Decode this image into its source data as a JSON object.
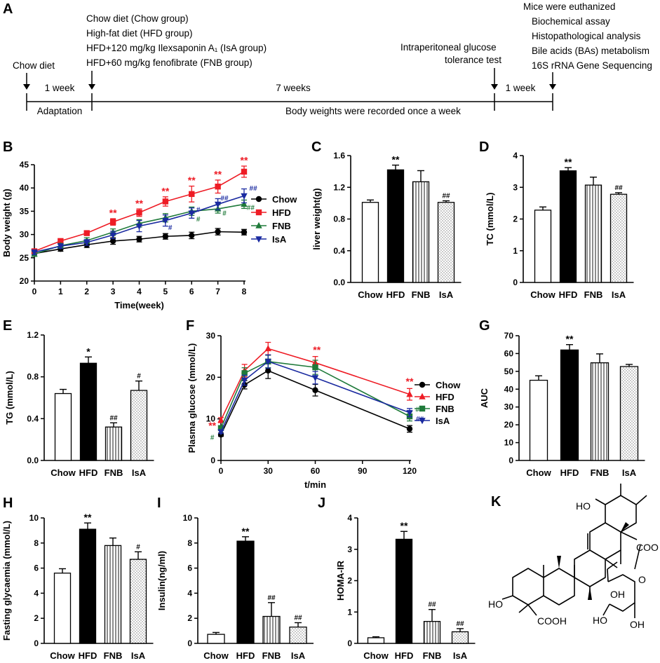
{
  "colors": {
    "chow": "#000000",
    "hfd": "#ee1c25",
    "fnb": "#1f7a3a",
    "isa": "#1a2aa0"
  },
  "timeline": {
    "panel_label": "A",
    "start_label": "Chow diet",
    "groups": [
      "Chow diet (Chow group)",
      "High-fat diet (HFD group)",
      "HFD+120 mg/kg Ilexsaponin A₁ (IsA group)",
      "HFD+60 mg/kg fenofibrate (FNB group)"
    ],
    "ipgtt": [
      "Intraperitoneal glucose",
      "tolerance test"
    ],
    "end": [
      "Mice were euthanized",
      "Biochemical assay",
      "Histopathological analysis",
      "Bile acids (BAs) metabolism",
      "16S rRNA Gene Sequencing"
    ],
    "week1": "1 week",
    "week7": "7 weeks",
    "week1b": "1 week",
    "adaptation": "Adaptation",
    "bw_note": "Body weights were recorded once a week"
  },
  "chart_data": [
    {
      "id": "B",
      "type": "line",
      "panel_label": "B",
      "xlabel": "Time(week)",
      "ylabel": "Body weight (g)",
      "x": [
        0,
        1,
        2,
        3,
        4,
        5,
        6,
        7,
        8
      ],
      "xlim": [
        0,
        8
      ],
      "ylim": [
        20,
        45
      ],
      "xticks": [
        0,
        1,
        2,
        3,
        4,
        5,
        6,
        7,
        8
      ],
      "yticks": [
        20,
        25,
        30,
        35,
        40,
        45
      ],
      "legend": [
        "Chow",
        "HFD",
        "FNB",
        "IsA"
      ],
      "series": [
        {
          "name": "Chow",
          "key": "chow",
          "values": [
            25.9,
            26.9,
            27.8,
            28.6,
            29.0,
            29.6,
            29.8,
            30.6,
            30.5
          ],
          "err": [
            0.5,
            0.5,
            0.6,
            0.7,
            0.6,
            0.6,
            0.7,
            0.7,
            0.6
          ]
        },
        {
          "name": "HFD",
          "key": "hfd",
          "values": [
            26.4,
            28.6,
            30.3,
            32.7,
            34.7,
            37.1,
            38.7,
            40.3,
            43.5
          ],
          "err": [
            0.4,
            0.4,
            0.5,
            0.7,
            0.8,
            1.0,
            1.7,
            1.4,
            1.2
          ]
        },
        {
          "name": "FNB",
          "key": "fnb",
          "values": [
            25.8,
            27.6,
            28.7,
            30.5,
            32.4,
            33.6,
            35.0,
            35.5,
            36.5
          ],
          "err": [
            0.5,
            0.5,
            0.6,
            0.7,
            0.8,
            0.9,
            0.9,
            0.9,
            0.9
          ]
        },
        {
          "name": "IsA",
          "key": "isa",
          "values": [
            26.2,
            27.5,
            28.3,
            29.9,
            31.8,
            33.0,
            34.6,
            36.5,
            38.3
          ],
          "err": [
            0.5,
            0.5,
            0.6,
            0.8,
            1.2,
            1.2,
            1.1,
            1.2,
            1.5
          ]
        }
      ],
      "annotations": [
        {
          "text": "**",
          "x": 3,
          "y": 33.9,
          "color": "hfd",
          "kind": "star"
        },
        {
          "text": "**",
          "x": 4,
          "y": 36.0,
          "color": "hfd",
          "kind": "star"
        },
        {
          "text": "**",
          "x": 5,
          "y": 38.6,
          "color": "hfd",
          "kind": "star"
        },
        {
          "text": "**",
          "x": 6,
          "y": 40.9,
          "color": "hfd",
          "kind": "star"
        },
        {
          "text": "**",
          "x": 7,
          "y": 42.2,
          "color": "hfd",
          "kind": "star"
        },
        {
          "text": "**",
          "x": 8,
          "y": 45.2,
          "color": "hfd",
          "kind": "star"
        },
        {
          "text": "#",
          "x": 5.18,
          "y": 31.0,
          "color": "isa",
          "kind": "hash"
        },
        {
          "text": "#",
          "x": 6.25,
          "y": 34.8,
          "color": "isa",
          "kind": "hash"
        },
        {
          "text": "#",
          "x": 6.25,
          "y": 32.8,
          "color": "fnb",
          "kind": "hash"
        },
        {
          "text": "##",
          "x": 7.25,
          "y": 37.3,
          "color": "isa",
          "kind": "hash"
        },
        {
          "text": "#",
          "x": 7.25,
          "y": 34.1,
          "color": "fnb",
          "kind": "hash"
        },
        {
          "text": "##",
          "x": 8.35,
          "y": 39.4,
          "color": "isa",
          "kind": "hash"
        },
        {
          "text": "##",
          "x": 8.25,
          "y": 35.3,
          "color": "fnb",
          "kind": "hash"
        }
      ]
    },
    {
      "id": "C",
      "type": "bar",
      "panel_label": "C",
      "ylabel": "liver weight(g)",
      "categories": [
        "Chow",
        "HFD",
        "FNB",
        "IsA"
      ],
      "values": [
        1.01,
        1.42,
        1.27,
        1.01
      ],
      "err": [
        0.03,
        0.06,
        0.14,
        0.02
      ],
      "ylim": [
        0,
        1.6
      ],
      "yticks": [
        "0.0",
        "0.4",
        "0.8",
        "1.2",
        "1.6"
      ],
      "annotations": [
        {
          "text": "**",
          "bar": 1,
          "kind": "star"
        },
        {
          "text": "##",
          "bar": 3,
          "kind": "hash"
        }
      ]
    },
    {
      "id": "D",
      "type": "bar",
      "panel_label": "D",
      "ylabel": "TC (mmol/L)",
      "categories": [
        "Chow",
        "HFD",
        "FNB",
        "IsA"
      ],
      "values": [
        2.28,
        3.52,
        3.07,
        2.78
      ],
      "err": [
        0.1,
        0.1,
        0.25,
        0.05
      ],
      "ylim": [
        0,
        4
      ],
      "yticks": [
        "0",
        "1",
        "2",
        "3",
        "4"
      ],
      "annotations": [
        {
          "text": "**",
          "bar": 1,
          "kind": "star"
        },
        {
          "text": "##",
          "bar": 3,
          "kind": "hash"
        }
      ]
    },
    {
      "id": "E",
      "type": "bar",
      "panel_label": "E",
      "ylabel": "TG (mmol/L)",
      "categories": [
        "Chow",
        "HFD",
        "FNB",
        "IsA"
      ],
      "values": [
        0.64,
        0.93,
        0.32,
        0.67
      ],
      "err": [
        0.04,
        0.06,
        0.04,
        0.09
      ],
      "ylim": [
        0,
        1.2
      ],
      "yticks": [
        "0.0",
        "0.4",
        "0.8",
        "1.2"
      ],
      "annotations": [
        {
          "text": "*",
          "bar": 1,
          "kind": "star"
        },
        {
          "text": "##",
          "bar": 2,
          "kind": "hash"
        },
        {
          "text": "#",
          "bar": 3,
          "kind": "hash"
        }
      ]
    },
    {
      "id": "F",
      "type": "line",
      "panel_label": "F",
      "xlabel": "t/min",
      "ylabel": "Plasma glucose (mmol/L)",
      "x": [
        0,
        15,
        30,
        60,
        120
      ],
      "xlim": [
        0,
        120
      ],
      "ylim": [
        0,
        30
      ],
      "xticks": [
        0,
        30,
        60,
        90,
        120
      ],
      "yticks": [
        0,
        10,
        20,
        30
      ],
      "legend": [
        "Chow",
        "HFD",
        "FNB",
        "IsA"
      ],
      "series": [
        {
          "name": "Chow",
          "key": "chow",
          "values": [
            6.2,
            18.2,
            21.6,
            16.9,
            7.6
          ],
          "err": [
            0.4,
            1.0,
            1.9,
            1.4,
            0.8
          ],
          "marker": "circle"
        },
        {
          "name": "HFD",
          "key": "hfd",
          "values": [
            9.7,
            21.6,
            26.9,
            23.5,
            15.9
          ],
          "err": [
            0.6,
            1.5,
            1.5,
            1.5,
            1.4
          ],
          "marker": "triangle-up"
        },
        {
          "name": "FNB",
          "key": "fnb",
          "values": [
            7.8,
            21.0,
            23.8,
            22.4,
            10.6
          ],
          "err": [
            0.5,
            1.3,
            1.5,
            1.7,
            1.1
          ],
          "marker": "square"
        },
        {
          "name": "IsA",
          "key": "isa",
          "values": [
            6.9,
            19.3,
            23.8,
            19.9,
            11.5
          ],
          "err": [
            0.4,
            1.2,
            1.6,
            1.5,
            1.0
          ],
          "marker": "triangle-down"
        }
      ],
      "annotations": [
        {
          "text": "**",
          "x": 61,
          "y": 25.8,
          "color": "hfd",
          "kind": "star"
        },
        {
          "text": "**",
          "x": 120,
          "y": 18.2,
          "color": "hfd",
          "kind": "star"
        },
        {
          "text": "**",
          "x": -5.5,
          "y": 7.6,
          "color": "hfd",
          "kind": "star"
        },
        {
          "text": "#",
          "x": -5.5,
          "y": 5.0,
          "color": "fnb",
          "kind": "hash"
        },
        {
          "text": "#",
          "x": 125,
          "y": 11.7,
          "color": "fnb",
          "kind": "hash"
        },
        {
          "text": "##",
          "x": 126.5,
          "y": 9.4,
          "color": "isa",
          "kind": "hash"
        }
      ]
    },
    {
      "id": "G",
      "type": "bar",
      "panel_label": "G",
      "ylabel": "AUC",
      "categories": [
        "Chow",
        "HFD",
        "FNB",
        "IsA"
      ],
      "values": [
        45.0,
        62.0,
        54.8,
        52.7
      ],
      "err": [
        2.5,
        3.0,
        5.0,
        1.2
      ],
      "ylim": [
        0,
        70
      ],
      "yticks": [
        "0",
        "10",
        "20",
        "30",
        "40",
        "50",
        "60",
        "70"
      ],
      "annotations": [
        {
          "text": "**",
          "bar": 1,
          "kind": "star"
        }
      ]
    },
    {
      "id": "H",
      "type": "bar",
      "panel_label": "H",
      "ylabel": "Fasting glycaemia (mmol/L)",
      "categories": [
        "Chow",
        "HFD",
        "FNB",
        "IsA"
      ],
      "values": [
        5.6,
        9.1,
        7.8,
        6.7
      ],
      "err": [
        0.35,
        0.5,
        0.6,
        0.6
      ],
      "ylim": [
        0,
        10
      ],
      "yticks": [
        "0",
        "2",
        "4",
        "6",
        "8",
        "10"
      ],
      "annotations": [
        {
          "text": "**",
          "bar": 1,
          "kind": "star"
        },
        {
          "text": "#",
          "bar": 3,
          "kind": "hash"
        }
      ]
    },
    {
      "id": "I",
      "type": "bar",
      "panel_label": "I",
      "ylabel": "Insulin(ng/ml)",
      "categories": [
        "Chow",
        "HFD",
        "FNB",
        "IsA"
      ],
      "values": [
        0.72,
        8.15,
        2.15,
        1.3
      ],
      "err": [
        0.15,
        0.35,
        1.1,
        0.35
      ],
      "ylim": [
        0,
        10
      ],
      "yticks": [
        "0",
        "2",
        "4",
        "6",
        "8",
        "10"
      ],
      "annotations": [
        {
          "text": "**",
          "bar": 1,
          "kind": "star"
        },
        {
          "text": "##",
          "bar": 2,
          "kind": "hash"
        },
        {
          "text": "##",
          "bar": 3,
          "kind": "hash"
        }
      ]
    },
    {
      "id": "J",
      "type": "bar",
      "panel_label": "J",
      "ylabel": "HOMA-IR",
      "categories": [
        "Chow",
        "HFD",
        "FNB",
        "IsA"
      ],
      "values": [
        0.18,
        3.32,
        0.7,
        0.37
      ],
      "err": [
        0.03,
        0.25,
        0.38,
        0.1
      ],
      "ylim": [
        0,
        4
      ],
      "yticks": [
        "0",
        "1",
        "2",
        "3",
        "4"
      ],
      "annotations": [
        {
          "text": "**",
          "bar": 1,
          "kind": "star"
        },
        {
          "text": "##",
          "bar": 2,
          "kind": "hash"
        },
        {
          "text": "##",
          "bar": 3,
          "kind": "hash"
        }
      ]
    }
  ],
  "structure": {
    "panel_label": "K",
    "labels": [
      "HO",
      "HO",
      "COO",
      "COOH",
      "O",
      "OH",
      "HO",
      "OH"
    ]
  }
}
